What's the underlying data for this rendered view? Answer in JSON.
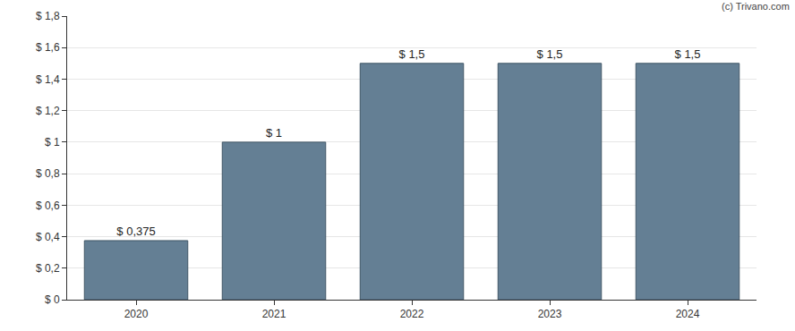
{
  "chart_data": {
    "type": "bar",
    "categories": [
      "2020",
      "2021",
      "2022",
      "2023",
      "2024"
    ],
    "values": [
      0.375,
      1,
      1.5,
      1.5,
      1.5
    ],
    "value_labels": [
      "$ 0,375",
      "$ 1",
      "$ 1,5",
      "$ 1,5",
      "$ 1,5"
    ],
    "data_labels": true,
    "color": "#647f94",
    "ylim": [
      0,
      1.8
    ],
    "yticks": [
      {
        "value": 0,
        "label": "$ 0"
      },
      {
        "value": 0.2,
        "label": "$ 0,2"
      },
      {
        "value": 0.4,
        "label": "$ 0,4"
      },
      {
        "value": 0.6,
        "label": "$ 0,6"
      },
      {
        "value": 0.8,
        "label": "$ 0,8"
      },
      {
        "value": 1,
        "label": "$ 1"
      },
      {
        "value": 1.2,
        "label": "$ 1,2"
      },
      {
        "value": 1.4,
        "label": "$ 1,4"
      },
      {
        "value": 1.6,
        "label": "$ 1,6"
      },
      {
        "value": 1.8,
        "label": "$ 1,8"
      }
    ],
    "grid": true,
    "annotations": [
      {
        "text": "(c) Trivano.com"
      }
    ]
  }
}
